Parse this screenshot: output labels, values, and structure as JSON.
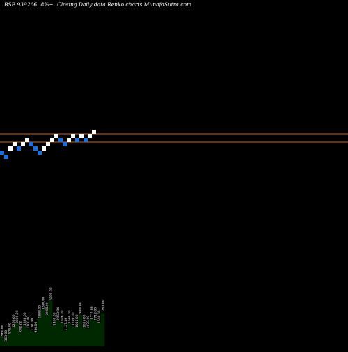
{
  "header": {
    "symbol": "BSE 939266",
    "change": "8%~",
    "description": "Closing Daily data Renko charts MunafaSutra.com"
  },
  "colors": {
    "background": "#000000",
    "up_brick": "#ffffff",
    "down_brick": "#1e6fd9",
    "level_line": "#c8651b",
    "volume_bar": "#002800",
    "volume_text": "#ffffff"
  },
  "chart_data": {
    "type": "renko",
    "bricks": [
      {
        "dir": "down",
        "level": 0
      },
      {
        "dir": "down",
        "level": -1
      },
      {
        "dir": "up",
        "level": 1
      },
      {
        "dir": "up",
        "level": 2
      },
      {
        "dir": "down",
        "level": 1
      },
      {
        "dir": "up",
        "level": 2
      },
      {
        "dir": "up",
        "level": 3
      },
      {
        "dir": "down",
        "level": 2
      },
      {
        "dir": "down",
        "level": 1
      },
      {
        "dir": "down",
        "level": 0
      },
      {
        "dir": "up",
        "level": 1
      },
      {
        "dir": "up",
        "level": 2
      },
      {
        "dir": "up",
        "level": 3
      },
      {
        "dir": "up",
        "level": 4
      },
      {
        "dir": "down",
        "level": 3
      },
      {
        "dir": "down",
        "level": 2
      },
      {
        "dir": "up",
        "level": 3
      },
      {
        "dir": "up",
        "level": 4
      },
      {
        "dir": "down",
        "level": 3
      },
      {
        "dir": "up",
        "level": 4
      },
      {
        "dir": "down",
        "level": 3
      },
      {
        "dir": "up",
        "level": 4
      },
      {
        "dir": "up",
        "level": 5
      }
    ],
    "level_lines": [
      4.5,
      2.5
    ],
    "volume": {
      "labels": [
        "960.00",
        "360.00",
        "875.00",
        "1260.00",
        "2900.00",
        "950.00",
        "1388.00",
        "1300.00",
        "1160.00",
        "950.00",
        "1888.00",
        "3280.00",
        "2000.00",
        "5900.00",
        "1460.00",
        "1953.94",
        "1506.00",
        "1127.39",
        "1594.00",
        "1299.00",
        "1015.00",
        "2000.00",
        "1015.00",
        "1070.00",
        "1715.00",
        "1712.00",
        "1500.00",
        "1293.00"
      ],
      "values": [
        0.1,
        0.05,
        0.12,
        0.18,
        0.22,
        0.14,
        0.2,
        0.17,
        0.15,
        0.13,
        0.27,
        0.35,
        0.3,
        0.44,
        0.2,
        0.25,
        0.22,
        0.15,
        0.22,
        0.2,
        0.18,
        0.3,
        0.18,
        0.17,
        0.26,
        0.25,
        0.22,
        0.32
      ]
    }
  }
}
